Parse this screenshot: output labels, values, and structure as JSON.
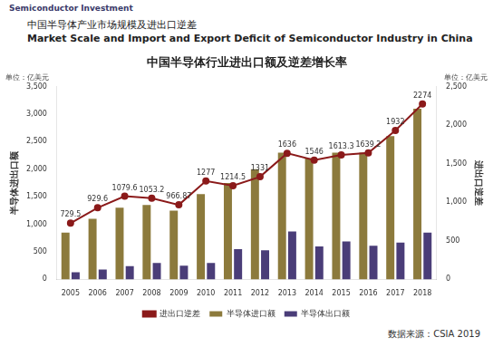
{
  "chart_data": {
    "type": "bar",
    "heading": [
      "中国半导体产业市场规模及进出口逆差",
      "Market Scale and Import and Export Deficit of Semiconductor Industry in China"
    ],
    "logo": "Semiconductor Investment",
    "title": "中国半导体行业进出口额及逆差增长率",
    "units": "单位：亿美元",
    "ylabel": "半导体进出口额",
    "y2label": "进出口逆差",
    "source": "数据来源：CSIA 2019",
    "categories": [
      "2005",
      "2006",
      "2007",
      "2008",
      "2009",
      "2010",
      "2011",
      "2012",
      "2013",
      "2014",
      "2015",
      "2016",
      "2017",
      "2018"
    ],
    "series": [
      {
        "name": "半导体进口额",
        "type": "bar",
        "color": "#8c7a3c",
        "values": [
          850,
          1100,
          1300,
          1350,
          1250,
          1550,
          1750,
          2000,
          2300,
          2200,
          2300,
          2300,
          2600,
          3100
        ]
      },
      {
        "name": "半导体出口额",
        "type": "bar",
        "color": "#4a3d78",
        "values": [
          130,
          180,
          240,
          300,
          250,
          300,
          550,
          530,
          870,
          600,
          690,
          610,
          670,
          850
        ]
      },
      {
        "name": "进出口逆差",
        "type": "line",
        "color": "#8b1a1a",
        "axis": "y2",
        "marker": "circle",
        "line_style": "solid",
        "data_labels": true,
        "values": [
          729.5,
          929.6,
          1079.6,
          1053.2,
          966.87,
          1277,
          1214.5,
          1331,
          1636,
          1546,
          1613.3,
          1639.2,
          1932,
          2274
        ]
      }
    ],
    "ylim": [
      0,
      3500
    ],
    "yticks": [
      0,
      500,
      {
        "value": 1000,
        "label": "1,000"
      },
      {
        "value": 1500,
        "label": "1,500"
      },
      {
        "value": 2000,
        "label": "2,000"
      },
      {
        "value": 2500,
        "label": "2,500"
      },
      {
        "value": 3000,
        "label": "3,000"
      },
      {
        "value": 3500,
        "label": "3,500"
      }
    ],
    "y2lim": [
      0,
      2500
    ],
    "y2ticks": [
      0,
      500,
      {
        "value": 1000,
        "label": "1,000"
      },
      {
        "value": 1500,
        "label": "1,500"
      },
      {
        "value": 2000,
        "label": "2,000"
      },
      {
        "value": 2500,
        "label": "2,500"
      }
    ],
    "grid": false,
    "legend": "bottom"
  }
}
